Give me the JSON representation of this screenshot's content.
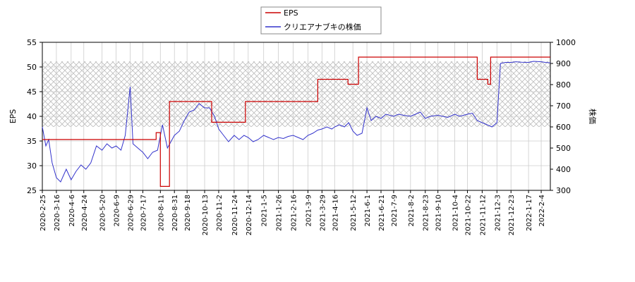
{
  "chart_data": {
    "type": "line",
    "legend": {
      "placement": "top-center",
      "entries": [
        {
          "label": "EPS",
          "color": "#cc0000"
        },
        {
          "label": "クリエアナブキの株価",
          "color": "#3333cc"
        }
      ]
    },
    "ylabel_left": "EPS",
    "ylabel_right": "株価",
    "ylim_left": [
      25,
      55
    ],
    "yticks_left": [
      25,
      30,
      35,
      40,
      45,
      50,
      55
    ],
    "ylim_right": [
      300,
      1000
    ],
    "yticks_right": [
      300,
      400,
      500,
      600,
      700,
      800,
      900,
      1000
    ],
    "x_ticks": [
      "2020-2-25",
      "2020-3-16",
      "2020-4-6",
      "2020-4-24",
      "2020-5-20",
      "2020-6-9",
      "2020-6-29",
      "2020-7-17",
      "2020-8-11",
      "2020-8-31",
      "2020-9-18",
      "2020-10-13",
      "2020-11-2",
      "2020-11-24",
      "2020-12-14",
      "2021-1-5",
      "2021-1-26",
      "2021-2-16",
      "2021-3-9",
      "2021-3-29",
      "2021-4-16",
      "2021-5-12",
      "2021-6-1",
      "2021-6-21",
      "2021-7-9",
      "2021-8-2",
      "2021-8-23",
      "2021-9-10",
      "2021-10-4",
      "2021-10-22",
      "2021-11-12",
      "2021-12-3",
      "2021-12-23",
      "2022-1-17",
      "2022-2-4"
    ],
    "shaded_band_right": [
      600,
      910
    ],
    "grid": true,
    "eps_series": {
      "name": "EPS",
      "points": [
        [
          "2020-2-25",
          35.3
        ],
        [
          "2020-8-5",
          35.3
        ],
        [
          "2020-8-5",
          36.7
        ],
        [
          "2020-8-11",
          36.7
        ],
        [
          "2020-8-11",
          25.8
        ],
        [
          "2020-8-24",
          25.8
        ],
        [
          "2020-8-24",
          43.0
        ],
        [
          "2020-10-23",
          43.0
        ],
        [
          "2020-10-23",
          38.8
        ],
        [
          "2020-12-10",
          38.8
        ],
        [
          "2020-12-10",
          43.0
        ],
        [
          "2021-3-23",
          43.0
        ],
        [
          "2021-3-23",
          47.5
        ],
        [
          "2021-5-5",
          47.5
        ],
        [
          "2021-5-5",
          46.5
        ],
        [
          "2021-5-20",
          46.5
        ],
        [
          "2021-5-20",
          52.0
        ],
        [
          "2021-11-5",
          52.0
        ],
        [
          "2021-11-5",
          47.5
        ],
        [
          "2021-11-20",
          47.5
        ],
        [
          "2021-11-20",
          46.5
        ],
        [
          "2021-11-24",
          46.5
        ],
        [
          "2021-11-24",
          52.0
        ],
        [
          "2022-2-17",
          52.0
        ]
      ]
    },
    "price_series": {
      "name": "クリエアナブキの株価",
      "points": [
        [
          "2020-2-25",
          600
        ],
        [
          "2020-3-1",
          510
        ],
        [
          "2020-3-5",
          540
        ],
        [
          "2020-3-10",
          430
        ],
        [
          "2020-3-16",
          360
        ],
        [
          "2020-3-22",
          340
        ],
        [
          "2020-3-30",
          400
        ],
        [
          "2020-4-6",
          350
        ],
        [
          "2020-4-13",
          390
        ],
        [
          "2020-4-20",
          420
        ],
        [
          "2020-4-27",
          400
        ],
        [
          "2020-5-4",
          430
        ],
        [
          "2020-5-12",
          510
        ],
        [
          "2020-5-20",
          490
        ],
        [
          "2020-5-27",
          520
        ],
        [
          "2020-6-3",
          500
        ],
        [
          "2020-6-9",
          510
        ],
        [
          "2020-6-16",
          490
        ],
        [
          "2020-6-22",
          560
        ],
        [
          "2020-6-29",
          790
        ],
        [
          "2020-7-3",
          520
        ],
        [
          "2020-7-10",
          500
        ],
        [
          "2020-7-17",
          480
        ],
        [
          "2020-7-24",
          450
        ],
        [
          "2020-7-31",
          480
        ],
        [
          "2020-8-7",
          490
        ],
        [
          "2020-8-14",
          610
        ],
        [
          "2020-8-21",
          500
        ],
        [
          "2020-8-31",
          560
        ],
        [
          "2020-9-7",
          580
        ],
        [
          "2020-9-14",
          630
        ],
        [
          "2020-9-21",
          670
        ],
        [
          "2020-9-28",
          680
        ],
        [
          "2020-10-5",
          710
        ],
        [
          "2020-10-13",
          690
        ],
        [
          "2020-10-20",
          690
        ],
        [
          "2020-10-27",
          650
        ],
        [
          "2020-11-2",
          590
        ],
        [
          "2020-11-9",
          560
        ],
        [
          "2020-11-16",
          530
        ],
        [
          "2020-11-24",
          560
        ],
        [
          "2020-12-1",
          540
        ],
        [
          "2020-12-8",
          560
        ],
        [
          "2020-12-14",
          550
        ],
        [
          "2020-12-21",
          530
        ],
        [
          "2020-12-28",
          540
        ],
        [
          "2021-1-5",
          560
        ],
        [
          "2021-1-12",
          550
        ],
        [
          "2021-1-19",
          540
        ],
        [
          "2021-1-26",
          550
        ],
        [
          "2021-2-2",
          545
        ],
        [
          "2021-2-9",
          555
        ],
        [
          "2021-2-16",
          560
        ],
        [
          "2021-2-23",
          550
        ],
        [
          "2021-3-2",
          540
        ],
        [
          "2021-3-9",
          560
        ],
        [
          "2021-3-16",
          570
        ],
        [
          "2021-3-23",
          585
        ],
        [
          "2021-3-29",
          590
        ],
        [
          "2021-4-5",
          600
        ],
        [
          "2021-4-12",
          590
        ],
        [
          "2021-4-16",
          600
        ],
        [
          "2021-4-23",
          610
        ],
        [
          "2021-4-30",
          600
        ],
        [
          "2021-5-6",
          620
        ],
        [
          "2021-5-12",
          580
        ],
        [
          "2021-5-18",
          560
        ],
        [
          "2021-5-25",
          570
        ],
        [
          "2021-6-1",
          690
        ],
        [
          "2021-6-7",
          630
        ],
        [
          "2021-6-14",
          650
        ],
        [
          "2021-6-21",
          640
        ],
        [
          "2021-6-28",
          660
        ],
        [
          "2021-7-9",
          650
        ],
        [
          "2021-7-16",
          660
        ],
        [
          "2021-7-23",
          655
        ],
        [
          "2021-8-2",
          650
        ],
        [
          "2021-8-9",
          660
        ],
        [
          "2021-8-16",
          670
        ],
        [
          "2021-8-23",
          640
        ],
        [
          "2021-8-30",
          650
        ],
        [
          "2021-9-10",
          655
        ],
        [
          "2021-9-17",
          650
        ],
        [
          "2021-9-24",
          645
        ],
        [
          "2021-10-4",
          660
        ],
        [
          "2021-10-11",
          650
        ],
        [
          "2021-10-22",
          660
        ],
        [
          "2021-10-29",
          665
        ],
        [
          "2021-11-5",
          630
        ],
        [
          "2021-11-12",
          620
        ],
        [
          "2021-11-19",
          610
        ],
        [
          "2021-11-26",
          600
        ],
        [
          "2021-12-3",
          620
        ],
        [
          "2021-12-8",
          900
        ],
        [
          "2021-12-15",
          905
        ],
        [
          "2021-12-23",
          905
        ],
        [
          "2021-12-30",
          908
        ],
        [
          "2022-1-7",
          906
        ],
        [
          "2022-1-17",
          905
        ],
        [
          "2022-1-24",
          910
        ],
        [
          "2022-2-4",
          908
        ],
        [
          "2022-2-10",
          905
        ],
        [
          "2022-2-17",
          903
        ]
      ]
    }
  }
}
